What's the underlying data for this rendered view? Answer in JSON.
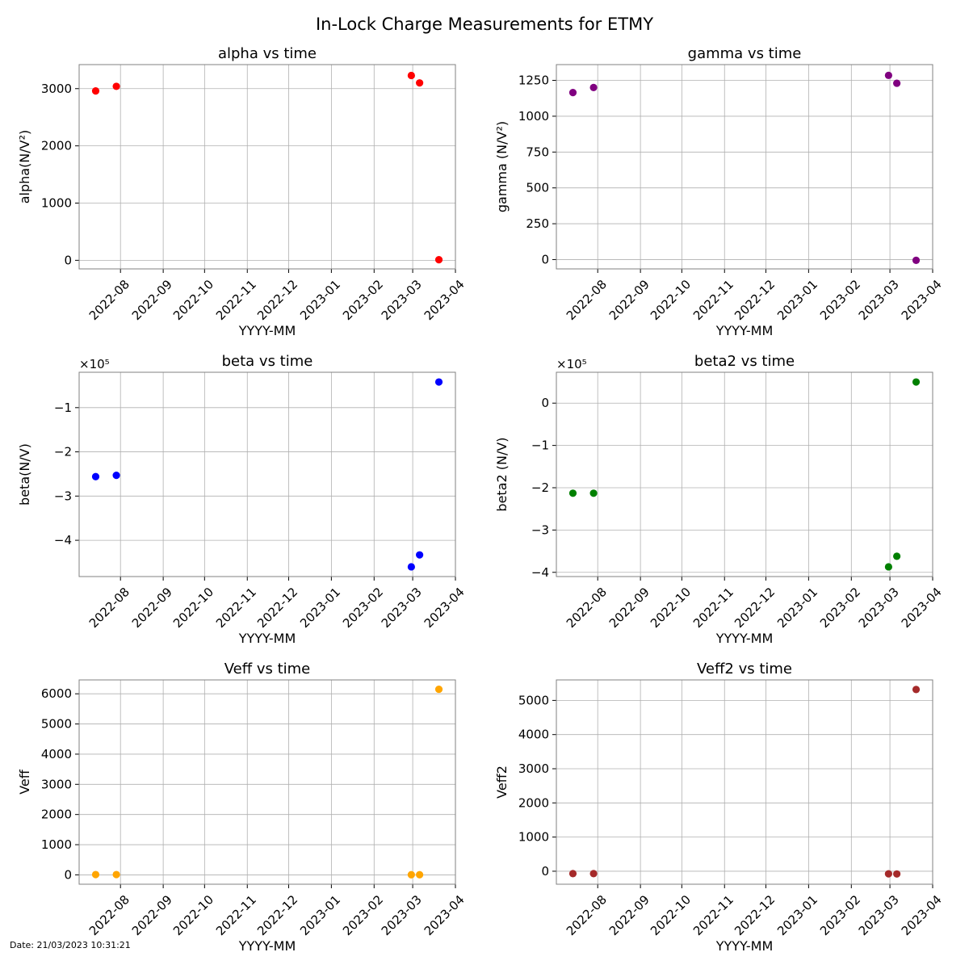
{
  "figure": {
    "title": "In-Lock Charge Measurements for ETMY",
    "date_stamp": "Date: 21/03/2023 10:31:21"
  },
  "chart_data": [
    {
      "type": "scatter",
      "title": "alpha vs time",
      "xlabel": "YYYY-MM",
      "ylabel": "alpha(N/V²)",
      "color": "#ff0000",
      "x": [
        "2022-07-14",
        "2022-07-29",
        "2023-02-28",
        "2023-03-06",
        "2023-03-20"
      ],
      "y": [
        2960,
        3040,
        3230,
        3100,
        10
      ],
      "xlim": [
        "2022-07-02",
        "2023-04-01"
      ],
      "ylim": [
        -150,
        3420
      ],
      "yticks": [
        0,
        1000,
        2000,
        3000
      ],
      "ytick_labels": [
        "0",
        "1000",
        "2000",
        "3000"
      ],
      "xticks": [
        "2022-08",
        "2022-09",
        "2022-10",
        "2022-11",
        "2022-12",
        "2023-01",
        "2023-02",
        "2023-03",
        "2023-04"
      ],
      "offset_label": "",
      "grid": true
    },
    {
      "type": "scatter",
      "title": "gamma vs time",
      "xlabel": "YYYY-MM",
      "ylabel": "gamma (N/V²)",
      "color": "#800080",
      "x": [
        "2022-07-14",
        "2022-07-29",
        "2023-02-28",
        "2023-03-06",
        "2023-03-20"
      ],
      "y": [
        1165,
        1200,
        1285,
        1230,
        -5
      ],
      "xlim": [
        "2022-07-02",
        "2023-04-01"
      ],
      "ylim": [
        -65,
        1360
      ],
      "yticks": [
        0,
        250,
        500,
        750,
        1000,
        1250
      ],
      "ytick_labels": [
        "0",
        "250",
        "500",
        "750",
        "1000",
        "1250"
      ],
      "xticks": [
        "2022-08",
        "2022-09",
        "2022-10",
        "2022-11",
        "2022-12",
        "2023-01",
        "2023-02",
        "2023-03",
        "2023-04"
      ],
      "offset_label": "",
      "grid": true
    },
    {
      "type": "scatter",
      "title": "beta vs time",
      "xlabel": "YYYY-MM",
      "ylabel": "beta(N/V)",
      "color": "#0000ff",
      "x": [
        "2022-07-14",
        "2022-07-29",
        "2023-02-28",
        "2023-03-06",
        "2023-03-20"
      ],
      "y": [
        -2.56,
        -2.53,
        -4.6,
        -4.33,
        -0.42
      ],
      "xlim": [
        "2022-07-02",
        "2023-04-01"
      ],
      "ylim": [
        -4.82,
        -0.2
      ],
      "yticks": [
        -4,
        -3,
        -2,
        -1
      ],
      "ytick_labels": [
        "−4",
        "−3",
        "−2",
        "−1"
      ],
      "xticks": [
        "2022-08",
        "2022-09",
        "2022-10",
        "2022-11",
        "2022-12",
        "2023-01",
        "2023-02",
        "2023-03",
        "2023-04"
      ],
      "offset_label": "×10⁵",
      "grid": true
    },
    {
      "type": "scatter",
      "title": "beta2 vs time",
      "xlabel": "YYYY-MM",
      "ylabel": "beta2 (N/V)",
      "color": "#008000",
      "x": [
        "2022-07-14",
        "2022-07-29",
        "2023-02-28",
        "2023-03-06",
        "2023-03-20"
      ],
      "y": [
        -2.13,
        -2.13,
        -3.87,
        -3.62,
        0.5
      ],
      "xlim": [
        "2022-07-02",
        "2023-04-01"
      ],
      "ylim": [
        -4.1,
        0.73
      ],
      "yticks": [
        -4,
        -3,
        -2,
        -1,
        0
      ],
      "ytick_labels": [
        "−4",
        "−3",
        "−2",
        "−1",
        "0"
      ],
      "xticks": [
        "2022-08",
        "2022-09",
        "2022-10",
        "2022-11",
        "2022-12",
        "2023-01",
        "2023-02",
        "2023-03",
        "2023-04"
      ],
      "offset_label": "×10⁵",
      "grid": true
    },
    {
      "type": "scatter",
      "title": "Veff vs time",
      "xlabel": "YYYY-MM",
      "ylabel": "Veff",
      "color": "#ffa500",
      "x": [
        "2022-07-14",
        "2022-07-29",
        "2023-02-28",
        "2023-03-06",
        "2023-03-20"
      ],
      "y": [
        10,
        10,
        5,
        5,
        6150
      ],
      "xlim": [
        "2022-07-02",
        "2023-04-01"
      ],
      "ylim": [
        -310,
        6460
      ],
      "yticks": [
        0,
        1000,
        2000,
        3000,
        4000,
        5000,
        6000
      ],
      "ytick_labels": [
        "0",
        "1000",
        "2000",
        "3000",
        "4000",
        "5000",
        "6000"
      ],
      "xticks": [
        "2022-08",
        "2022-09",
        "2022-10",
        "2022-11",
        "2022-12",
        "2023-01",
        "2023-02",
        "2023-03",
        "2023-04"
      ],
      "offset_label": "",
      "grid": true
    },
    {
      "type": "scatter",
      "title": "Veff2 vs time",
      "xlabel": "YYYY-MM",
      "ylabel": "Veff2",
      "color": "#a52a2a",
      "x": [
        "2022-07-14",
        "2022-07-29",
        "2023-02-28",
        "2023-03-06",
        "2023-03-20"
      ],
      "y": [
        -70,
        -70,
        -75,
        -80,
        5320
      ],
      "xlim": [
        "2022-07-02",
        "2023-04-01"
      ],
      "ylim": [
        -380,
        5600
      ],
      "yticks": [
        0,
        1000,
        2000,
        3000,
        4000,
        5000
      ],
      "ytick_labels": [
        "0",
        "1000",
        "2000",
        "3000",
        "4000",
        "5000"
      ],
      "xticks": [
        "2022-08",
        "2022-09",
        "2022-10",
        "2022-11",
        "2022-12",
        "2023-01",
        "2023-02",
        "2023-03",
        "2023-04"
      ],
      "offset_label": "",
      "grid": true
    }
  ]
}
